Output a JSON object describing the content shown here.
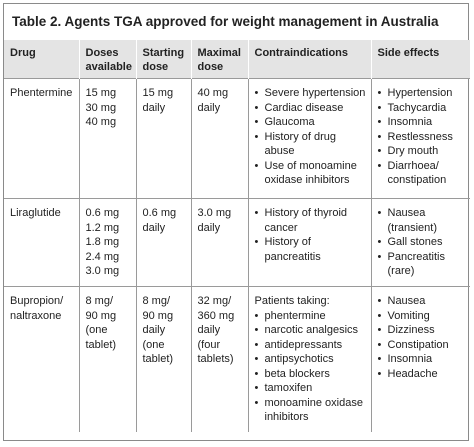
{
  "title": "Table 2. Agents TGA approved for weight management in Australia",
  "headers": [
    "Drug",
    "Doses available",
    "Starting dose",
    "Maximal dose",
    "Contraindications",
    "Side effects"
  ],
  "rows": [
    {
      "drug": "Phentermine",
      "doses": [
        "15 mg",
        "30 mg",
        "40 mg"
      ],
      "start": [
        "15 mg",
        "daily"
      ],
      "max": [
        "40 mg",
        "daily"
      ],
      "contra_intro": "",
      "contra": [
        "Severe hypertension",
        "Cardiac disease",
        "Glaucoma",
        "History of drug abuse",
        "Use of monoamine oxidase inhibitors"
      ],
      "side": [
        "Hypertension",
        "Tachycardia",
        "Insomnia",
        "Restlessness",
        "Dry mouth",
        "Diarrhoea/ constipation"
      ]
    },
    {
      "drug": "Liraglutide",
      "doses": [
        "0.6 mg",
        "1.2 mg",
        "1.8 mg",
        "2.4 mg",
        "3.0 mg"
      ],
      "start": [
        "0.6 mg",
        "daily"
      ],
      "max": [
        "3.0 mg",
        "daily"
      ],
      "contra_intro": "",
      "contra": [
        "History of thyroid cancer",
        "History of pancreatitis"
      ],
      "side": [
        "Nausea (transient)",
        "Gall stones",
        "Pancreatitis (rare)"
      ]
    },
    {
      "drug": "Bupropion/ naltraxone",
      "doses": [
        "8 mg/",
        "90 mg",
        "(one",
        "tablet)"
      ],
      "start": [
        "8 mg/",
        "90 mg",
        "daily",
        "(one",
        "tablet)"
      ],
      "max": [
        "32 mg/",
        "360 mg",
        "daily",
        "(four",
        "tablets)"
      ],
      "contra_intro": "Patients taking:",
      "contra": [
        "phentermine",
        "narcotic analgesics",
        "antidepressants",
        "antipsychotics",
        "beta blockers",
        "tamoxifen",
        "monoamine oxidase inhibitors"
      ],
      "side": [
        "Nausea",
        "Vomiting",
        "Dizziness",
        "Constipation",
        "Insomnia",
        "Headache"
      ]
    }
  ]
}
